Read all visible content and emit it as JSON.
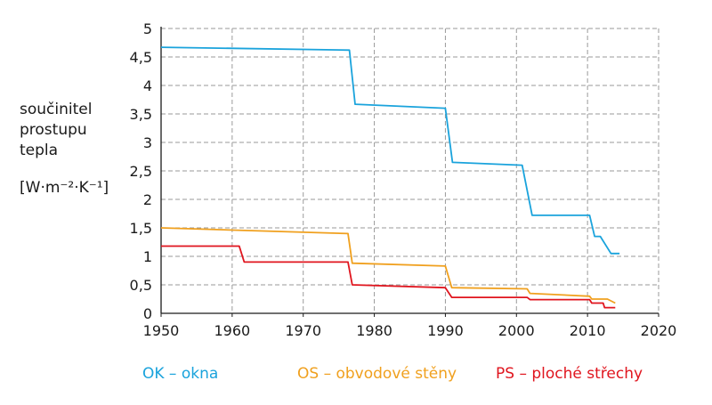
{
  "chart_data": {
    "type": "line",
    "ylabel_lines": [
      "součinitel",
      "prostupu",
      "tepla"
    ],
    "yunit": "[W·m⁻²·K⁻¹]",
    "xlim": [
      1950,
      2020
    ],
    "ylim": [
      0,
      5
    ],
    "x_ticks": [
      "1950",
      "1960",
      "1970",
      "1980",
      "1990",
      "2000",
      "2010",
      "2020"
    ],
    "y_ticks": [
      "0",
      "0,5",
      "1",
      "1,5",
      "2",
      "2,5",
      "3",
      "3,5",
      "4",
      "4,5",
      "5"
    ],
    "grid": true,
    "series": [
      {
        "name": "OK – okna",
        "color": "#1aa3dc",
        "points": [
          [
            1950,
            4.67
          ],
          [
            1976.5,
            4.62
          ],
          [
            1977.3,
            3.67
          ],
          [
            1990,
            3.6
          ],
          [
            1991,
            2.65
          ],
          [
            2000.8,
            2.6
          ],
          [
            2002.2,
            1.72
          ],
          [
            2010.3,
            1.72
          ],
          [
            2011,
            1.35
          ],
          [
            2011.8,
            1.35
          ],
          [
            2013.3,
            1.05
          ],
          [
            2014.5,
            1.05
          ]
        ]
      },
      {
        "name": "OS – obvodové stěny",
        "color": "#f0a01e",
        "points": [
          [
            1950,
            1.5
          ],
          [
            1976.3,
            1.4
          ],
          [
            1976.9,
            0.88
          ],
          [
            1990,
            0.83
          ],
          [
            1990.9,
            0.45
          ],
          [
            2001.5,
            0.43
          ],
          [
            2001.9,
            0.35
          ],
          [
            2010.3,
            0.3
          ],
          [
            2010.6,
            0.25
          ],
          [
            2012.8,
            0.25
          ],
          [
            2013.9,
            0.18
          ]
        ]
      },
      {
        "name": "PS – ploché střechy",
        "color": "#e0151e",
        "points": [
          [
            1950,
            1.18
          ],
          [
            1961,
            1.18
          ],
          [
            1961.7,
            0.9
          ],
          [
            1976.3,
            0.9
          ],
          [
            1976.9,
            0.5
          ],
          [
            1990,
            0.45
          ],
          [
            1990.9,
            0.28
          ],
          [
            2001.5,
            0.28
          ],
          [
            2001.9,
            0.24
          ],
          [
            2010.3,
            0.24
          ],
          [
            2010.6,
            0.18
          ],
          [
            2012.2,
            0.18
          ],
          [
            2012.4,
            0.1
          ],
          [
            2013.9,
            0.1
          ]
        ]
      }
    ]
  }
}
